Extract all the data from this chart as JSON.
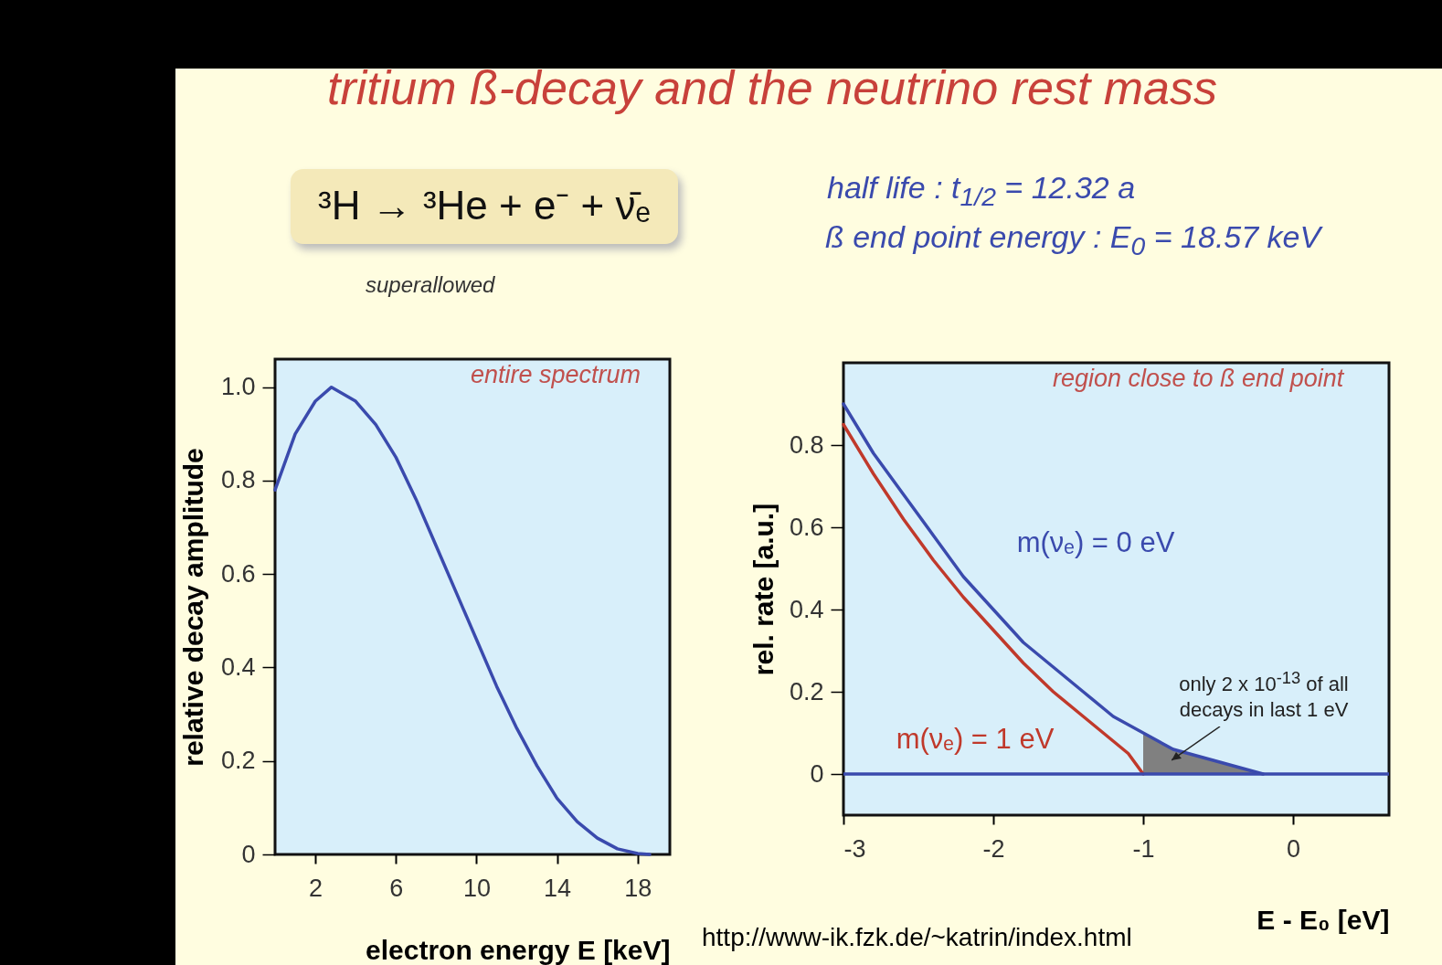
{
  "chart_data": [
    {
      "type": "line",
      "title": "tritium ß-decay and the neutrino rest mass",
      "xlabel": "electron energy E [keV]",
      "ylabel": "relative decay amplitude",
      "xlim": [
        0,
        19.6
      ],
      "ylim": [
        0,
        1.06
      ],
      "xticks": [
        2,
        6,
        10,
        14,
        18
      ],
      "yticks": [
        0,
        {
          "value": 0.2,
          "label": "0.2"
        },
        {
          "value": 0.4,
          "label": "0.4"
        },
        {
          "value": 0.6,
          "label": "0.6"
        },
        {
          "value": 0.8,
          "label": "0.8"
        },
        {
          "value": 1,
          "label": "1.0"
        }
      ],
      "grid": false,
      "annotations": [
        "³H → ³He + e⁻ + ν̄ₑ",
        "superallowed",
        "half life :  t$_{1/2}$ = 12.32 a",
        "ß end point energy : E$_{0}$ = 18.57 keV",
        "entire spectrum"
      ],
      "x": [
        0,
        1,
        2,
        2.8,
        4,
        5,
        6,
        7,
        8,
        9,
        10,
        11,
        12,
        13,
        14,
        15,
        16,
        17,
        18,
        18.6
      ],
      "series": [
        {
          "color": "#3a4aad",
          "values": [
            0.78,
            0.9,
            0.97,
            1.0,
            0.97,
            0.92,
            0.85,
            0.76,
            0.66,
            0.56,
            0.46,
            0.36,
            0.27,
            0.19,
            0.12,
            0.07,
            0.035,
            0.012,
            0.002,
            0
          ]
        }
      ]
    },
    {
      "type": "line",
      "xlabel": "E - E₀ [eV]",
      "ylabel": "rel. rate [a.u.]",
      "xlim": [
        -3,
        0.64
      ],
      "ylim": [
        -0.1,
        1.0
      ],
      "xticks": [
        -3,
        -2,
        -1,
        0
      ],
      "yticks": [
        0,
        {
          "value": 0.2,
          "label": "0.2"
        },
        {
          "value": 0.4,
          "label": "0.4"
        },
        {
          "value": 0.6,
          "label": "0.6"
        },
        {
          "value": 0.8,
          "label": "0.8"
        }
      ],
      "grid": false,
      "ref_lines": [
        {
          "axis": "y",
          "value": 0,
          "color": "#3a4aad"
        }
      ],
      "annotations": [
        "region close to ß end point",
        "only 2 x 10$^{-13}$ of all decays in last 1 eV",
        "http://www-ik.fzk.de/~katrin/index.html"
      ],
      "series": [
        {
          "type": "area",
          "color": "#808080",
          "x": [
            -1,
            -0.8,
            -0.6,
            -0.4,
            -0.2
          ],
          "values": [
            0.1,
            0.06,
            0.04,
            0.02,
            0.0
          ]
        },
        {
          "name": "m(νₑ) = 0 eV",
          "color": "#3a4aad",
          "x": [
            -3,
            -2.8,
            -2.6,
            -2.4,
            -2.2,
            -2,
            -1.8,
            -1.6,
            -1.4,
            -1.2,
            -1,
            -0.8,
            -0.6,
            -0.4,
            -0.2
          ],
          "values": [
            0.9,
            0.78,
            0.68,
            0.58,
            0.48,
            0.4,
            0.32,
            0.26,
            0.2,
            0.14,
            0.1,
            0.06,
            0.04,
            0.02,
            0.0
          ]
        },
        {
          "name": "m(νₑ) = 1 eV",
          "color": "#c0392b",
          "x": [
            -3,
            -2.8,
            -2.6,
            -2.4,
            -2.2,
            -2,
            -1.8,
            -1.6,
            -1.4,
            -1.2,
            -1.1,
            -1
          ],
          "values": [
            0.85,
            0.73,
            0.62,
            0.52,
            0.43,
            0.35,
            0.27,
            0.2,
            0.14,
            0.08,
            0.05,
            0
          ]
        }
      ]
    }
  ]
}
